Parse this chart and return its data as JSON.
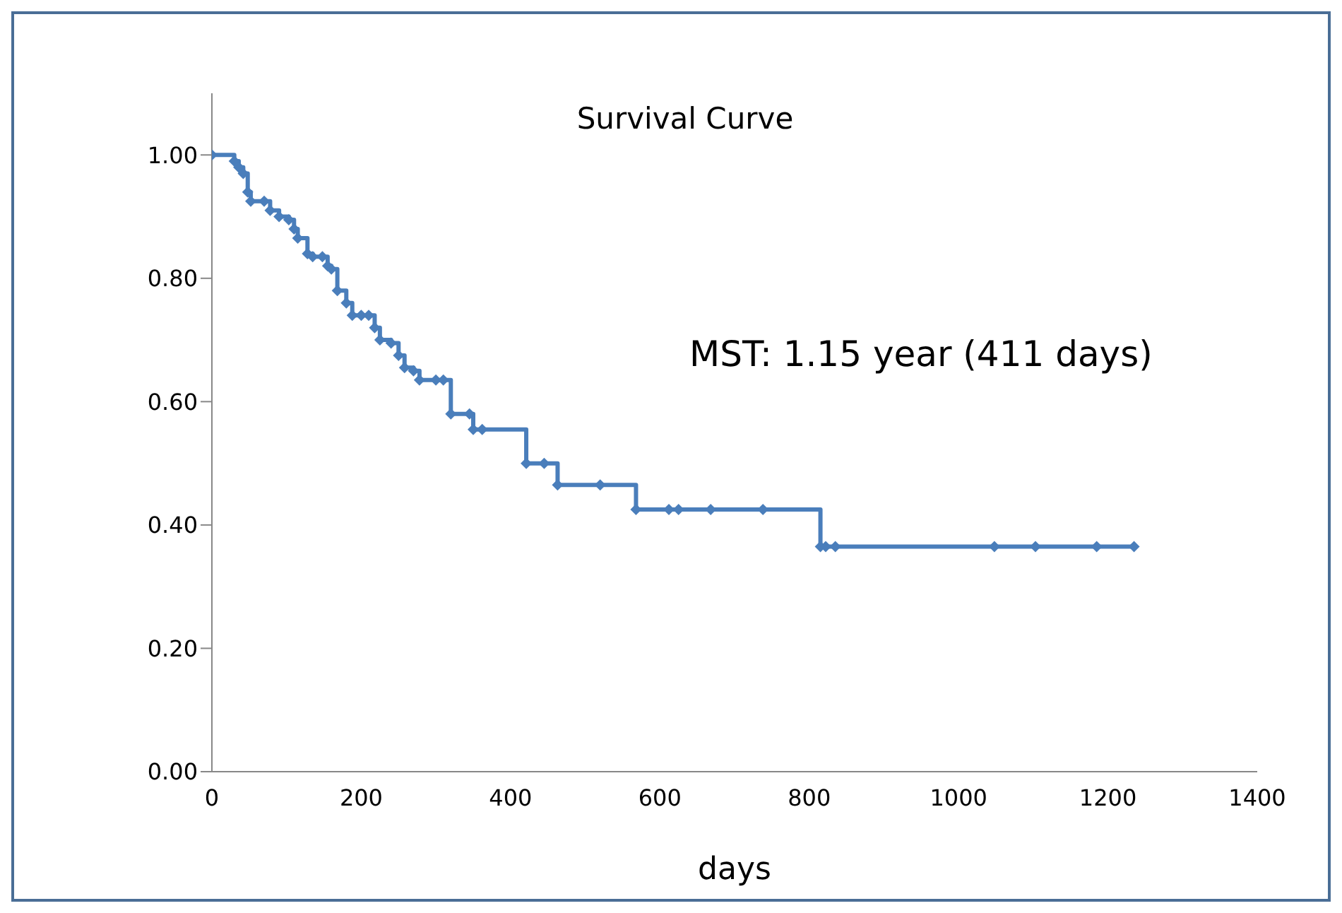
{
  "chart_data": {
    "type": "step",
    "title": "Survival Curve",
    "xlabel": "days",
    "annotations": [
      "MST: 1.15 year (411 days)"
    ],
    "x": [
      0,
      30,
      36,
      42,
      48,
      52,
      70,
      78,
      90,
      103,
      110,
      115,
      128,
      135,
      148,
      155,
      160,
      168,
      180,
      188,
      200,
      210,
      218,
      225,
      240,
      250,
      258,
      270,
      278,
      300,
      310,
      320,
      345,
      350,
      362,
      421,
      445,
      463,
      520,
      568,
      612,
      625,
      668,
      738,
      815,
      822,
      835,
      1048,
      1103,
      1185,
      1235
    ],
    "series": [
      {
        "color": "#4a7ebb",
        "values": [
          1.0,
          0.99,
          0.98,
          0.97,
          0.94,
          0.925,
          0.925,
          0.91,
          0.9,
          0.895,
          0.88,
          0.865,
          0.84,
          0.835,
          0.835,
          0.82,
          0.815,
          0.78,
          0.76,
          0.74,
          0.74,
          0.74,
          0.72,
          0.7,
          0.695,
          0.675,
          0.655,
          0.65,
          0.635,
          0.635,
          0.635,
          0.58,
          0.58,
          0.555,
          0.555,
          0.5,
          0.5,
          0.465,
          0.465,
          0.425,
          0.425,
          0.425,
          0.425,
          0.425,
          0.365,
          0.365,
          0.365,
          0.365,
          0.365,
          0.365,
          0.365
        ]
      }
    ],
    "xlim": [
      0,
      1400
    ],
    "xticks": [
      0,
      200,
      400,
      600,
      800,
      1000,
      1200,
      1400
    ],
    "ylim": [
      0,
      1.1
    ],
    "yticks": [
      {
        "value": 0,
        "label": "0.00"
      },
      {
        "value": 0.2,
        "label": "0.20"
      },
      {
        "value": 0.4,
        "label": "0.40"
      },
      {
        "value": 0.6,
        "label": "0.60"
      },
      {
        "value": 0.8,
        "label": "0.80"
      },
      {
        "value": 1.0,
        "label": "1.00"
      }
    ],
    "marker": "diamond",
    "line_style": "solid",
    "grid": false
  }
}
